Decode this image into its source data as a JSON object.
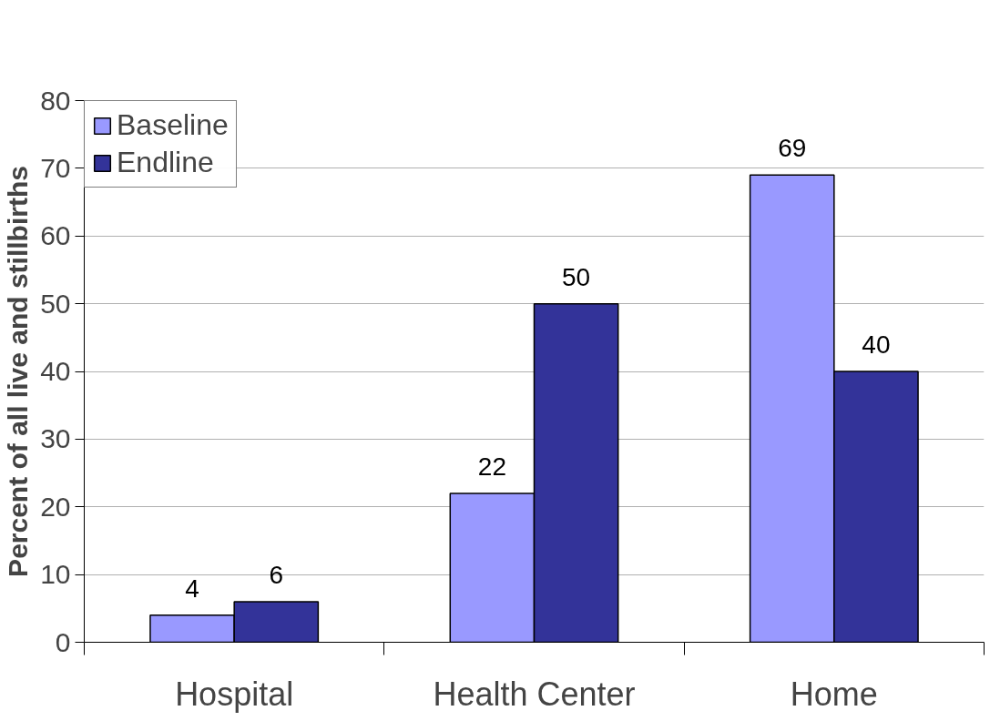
{
  "chart_data": {
    "type": "bar",
    "ylabel": "Percent of all live and stillbirths",
    "categories": [
      "Hospital",
      "Health Center",
      "Home"
    ],
    "series": [
      {
        "name": "Baseline",
        "color": "#9999ff",
        "values": [
          4,
          22,
          69
        ]
      },
      {
        "name": "Endline",
        "color": "#333399",
        "values": [
          6,
          50,
          40
        ]
      }
    ],
    "ylim": [
      0,
      80
    ],
    "yticks": [
      0,
      10,
      20,
      30,
      40,
      50,
      60,
      70,
      80
    ],
    "grid": "y",
    "legend": "top left",
    "data_labels": true
  }
}
